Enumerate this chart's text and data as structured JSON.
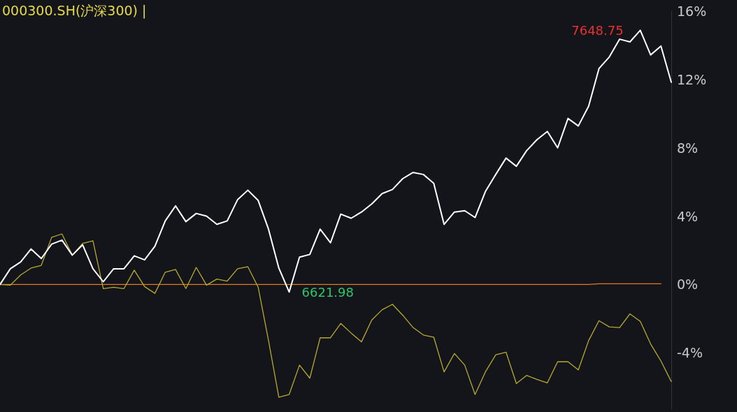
{
  "chart_data": {
    "type": "line",
    "title": "000300.SH(沪深300) |",
    "categories": [
      null,
      null,
      null,
      null,
      null,
      null,
      null,
      null,
      null,
      null,
      null,
      null,
      null,
      null,
      null,
      null,
      null,
      null,
      null,
      null,
      null,
      null,
      null,
      null,
      null,
      null,
      null,
      null,
      null,
      null,
      null,
      null,
      null,
      null,
      null,
      null,
      null,
      null,
      null,
      null,
      null,
      null,
      null,
      null,
      null,
      null,
      null,
      null,
      null,
      null,
      null,
      null,
      null,
      null,
      null,
      null,
      null,
      null,
      null,
      null,
      null,
      null,
      null,
      null,
      null,
      null
    ],
    "series": [
      {
        "color": "#ffffff",
        "values": [
          0,
          0.92,
          1.32,
          2.08,
          1.52,
          2.36,
          2.6,
          1.72,
          2.32,
          0.92,
          0.16,
          0.92,
          0.92,
          1.68,
          1.44,
          2.24,
          3.72,
          4.6,
          3.68,
          4.16,
          4.0,
          3.52,
          3.72,
          4.96,
          5.52,
          4.92,
          3.24,
          0.96,
          -0.44,
          1.6,
          1.76,
          3.24,
          2.44,
          4.12,
          3.88,
          4.24,
          4.72,
          5.32,
          5.56,
          6.2,
          6.56,
          6.44,
          5.92,
          3.52,
          4.24,
          4.32,
          3.92,
          5.44,
          6.44,
          7.4,
          6.92,
          7.84,
          8.48,
          8.96,
          8.0,
          9.72,
          9.28,
          10.44,
          12.64,
          13.32,
          14.36,
          14.2,
          14.88,
          13.44,
          13.96,
          11.84
        ]
      },
      {
        "color": "#b8aa30",
        "values": [
          0,
          -0.04,
          0.56,
          0.96,
          1.12,
          2.76,
          2.96,
          1.72,
          2.4,
          2.56,
          -0.24,
          -0.16,
          -0.24,
          0.84,
          -0.12,
          -0.52,
          0.72,
          0.88,
          -0.24,
          1.0,
          -0.04,
          0.32,
          0.2,
          0.92,
          1.04,
          -0.16,
          -3.28,
          -6.6,
          -6.44,
          -4.72,
          -5.48,
          -3.12,
          -3.12,
          -2.28,
          -2.84,
          -3.36,
          -2.08,
          -1.48,
          -1.16,
          -1.8,
          -2.52,
          -2.96,
          -3.08,
          -5.12,
          -4.04,
          -4.72,
          -6.44,
          -5.12,
          -4.12,
          -3.96,
          -5.8,
          -5.32,
          -5.56,
          -5.76,
          -4.52,
          -4.52,
          -5.0,
          -3.28,
          -2.12,
          -2.48,
          -2.52,
          -1.72,
          -2.16,
          -3.48,
          -4.48,
          -5.68
        ]
      },
      {
        "color": "#e07b24",
        "values": [
          0,
          0,
          0,
          0,
          0,
          0,
          0,
          0,
          0,
          0,
          0,
          0,
          0,
          0,
          0,
          0,
          0,
          0,
          0,
          0,
          0,
          0,
          0,
          0,
          0,
          0,
          0,
          0,
          0,
          0,
          0,
          0,
          0,
          0,
          0,
          0,
          0,
          0,
          0,
          0,
          0,
          0,
          0,
          0,
          0,
          0,
          0,
          0,
          0,
          0,
          0,
          0,
          0,
          0,
          0,
          0,
          0,
          0,
          0.04,
          0.04,
          0.04,
          0.04,
          0.04,
          0.04,
          0.04,
          null
        ]
      }
    ],
    "annotations": [
      "7648.75",
      "6621.98"
    ],
    "ylim": [
      -7.3,
      16
    ],
    "yticks": [
      {
        "value": 16,
        "label": "16%"
      },
      {
        "value": 12,
        "label": "12%"
      },
      {
        "value": 8,
        "label": "8%"
      },
      {
        "value": 4,
        "label": "4%"
      },
      {
        "value": 0,
        "label": "0%"
      },
      {
        "value": -4,
        "label": "-4%"
      }
    ],
    "tick_labels": "y",
    "grid": false,
    "marker": "none",
    "line_style": "solid"
  }
}
